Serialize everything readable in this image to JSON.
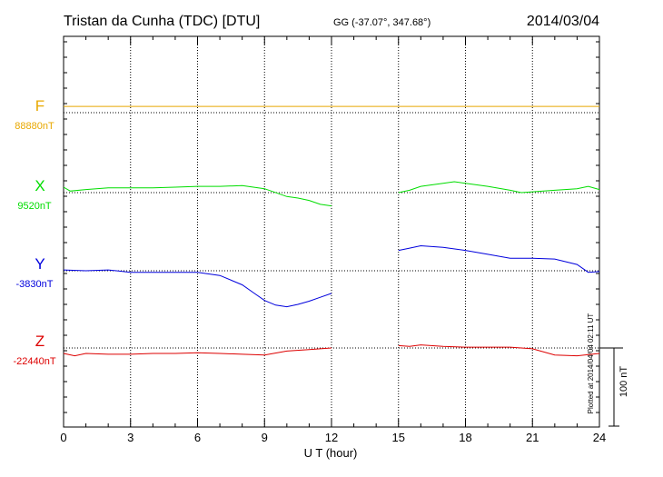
{
  "header": {
    "station": "Tristan da Cunha (TDC)  [DTU]",
    "coords": "GG (-37.07°, 347.68°)",
    "date": "2014/03/04"
  },
  "side_note": "Plotted at 2014/04/04 02:11  UT",
  "chart_data": {
    "type": "line",
    "title": "Tristan da Cunha (TDC)  [DTU]",
    "xlabel": "U T (hour)",
    "xlim": [
      0,
      24
    ],
    "x_ticks": [
      "0",
      "3",
      "6",
      "9",
      "12",
      "15",
      "18",
      "21",
      "24"
    ],
    "grid": true,
    "scale_bar": {
      "label": "100 nT",
      "value_nT": 100
    },
    "gap_hours": [
      12,
      15
    ],
    "series": [
      {
        "name": "F",
        "baseline_label": "88880nT",
        "baseline_nT": 88880,
        "color": "#e8a800",
        "x": [
          0,
          24
        ],
        "values": [
          88888,
          88888
        ]
      },
      {
        "name": "X",
        "baseline_label": "9520nT",
        "baseline_nT": 9520,
        "color": "#00dd00",
        "x": [
          0,
          0.3,
          1,
          2,
          3,
          4,
          5,
          6,
          7,
          8,
          9,
          10,
          10.5,
          11,
          11.5,
          12,
          15,
          15.5,
          16,
          17,
          17.5,
          18,
          19,
          20,
          20.5,
          21,
          22,
          23,
          23.5,
          24
        ],
        "values": [
          9527,
          9522,
          9524,
          9526,
          9526,
          9526,
          9527,
          9528,
          9528,
          9529,
          9525,
          9515,
          9513,
          9510,
          9505,
          9503,
          9520,
          9523,
          9528,
          9532,
          9534,
          9532,
          9528,
          9523,
          9520,
          9521,
          9523,
          9525,
          9528,
          9524
        ]
      },
      {
        "name": "Y",
        "baseline_label": "-3830nT",
        "baseline_nT": -3830,
        "color": "#0000dd",
        "x": [
          0,
          1,
          2,
          3,
          4,
          5,
          6,
          7,
          8,
          8.5,
          9,
          9.5,
          10,
          10.5,
          11,
          11.5,
          12,
          15,
          15.5,
          16,
          17,
          18,
          19,
          20,
          21,
          22,
          23,
          23.5,
          24
        ],
        "values": [
          -3829,
          -3830,
          -3829,
          -3832,
          -3832,
          -3832,
          -3832,
          -3836,
          -3848,
          -3858,
          -3868,
          -3874,
          -3876,
          -3873,
          -3869,
          -3864,
          -3859,
          -3804,
          -3801,
          -3798,
          -3800,
          -3804,
          -3809,
          -3814,
          -3814,
          -3815,
          -3822,
          -3832,
          -3831
        ]
      },
      {
        "name": "Z",
        "baseline_label": "-22440nT",
        "baseline_nT": -22440,
        "color": "#dd0000",
        "x": [
          0,
          0.5,
          1,
          2,
          3,
          4,
          5,
          6,
          7,
          8,
          9,
          10,
          11,
          11.5,
          12,
          15,
          15.5,
          16,
          17,
          18,
          19,
          20,
          21,
          22,
          23,
          24
        ],
        "values": [
          -22447,
          -22450,
          -22447,
          -22448,
          -22448,
          -22447,
          -22447,
          -22446,
          -22447,
          -22448,
          -22449,
          -22444,
          -22442,
          -22441,
          -22440,
          -22437,
          -22438,
          -22436,
          -22438,
          -22439,
          -22439,
          -22439,
          -22441,
          -22449,
          -22450,
          -22447
        ]
      }
    ]
  }
}
